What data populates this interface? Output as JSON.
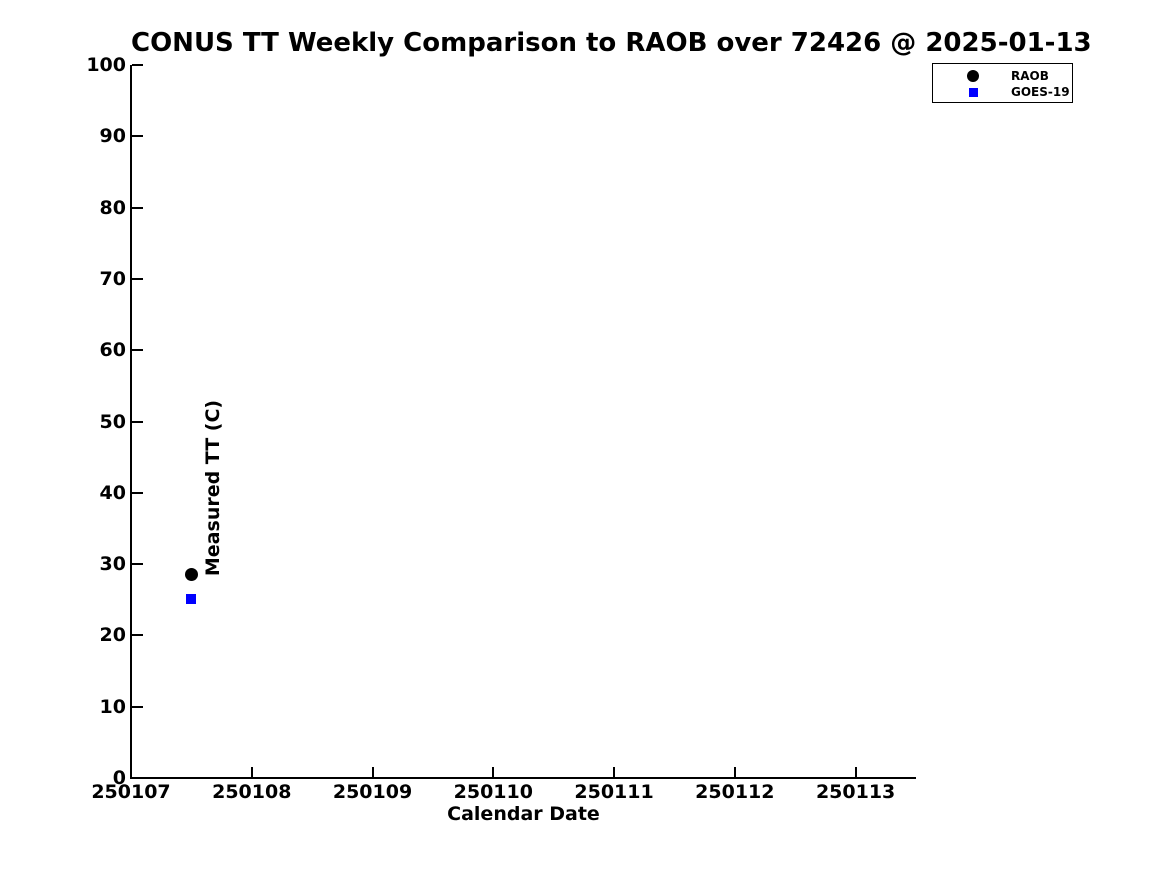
{
  "chart_data": {
    "type": "scatter",
    "title": "CONUS TT Weekly Comparison to RAOB over 72426 @ 2025-01-13",
    "xlabel": "Calendar Date",
    "ylabel": "Measured TT (C)",
    "xlim": [
      250107,
      250113.5
    ],
    "ylim": [
      0,
      100
    ],
    "x_ticks": [
      250107,
      250108,
      250109,
      250110,
      250111,
      250112,
      250113
    ],
    "y_ticks": [
      0,
      10,
      20,
      30,
      40,
      50,
      60,
      70,
      80,
      90,
      100
    ],
    "grid": false,
    "tick_direction": "in",
    "legend_position": "top-right",
    "background_color": "#ffffff",
    "axis_color": "#000000",
    "series": [
      {
        "name": "RAOB",
        "marker": "circle",
        "color": "#000000",
        "points": [
          {
            "x": 250107.5,
            "y": 28.5
          }
        ]
      },
      {
        "name": "GOES-19",
        "marker": "square",
        "color": "#0000ff",
        "points": [
          {
            "x": 250107.5,
            "y": 25.1
          }
        ]
      }
    ]
  }
}
